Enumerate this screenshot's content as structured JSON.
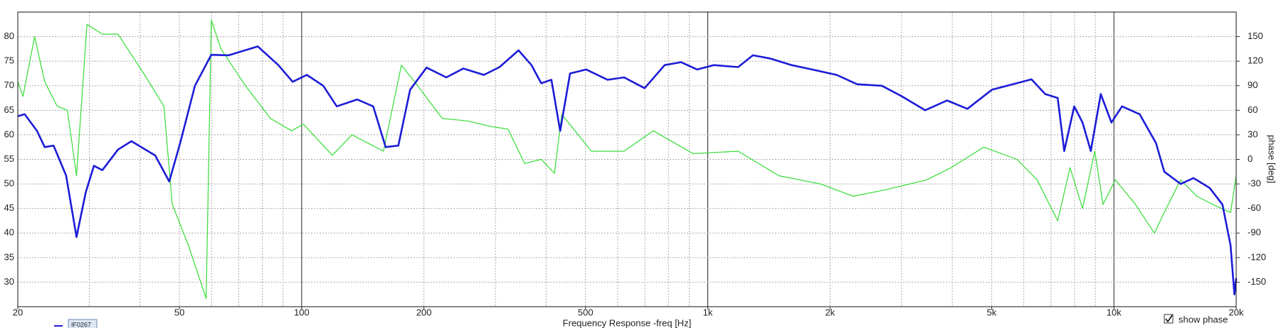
{
  "chart_data": {
    "type": "line",
    "x_label": "Frequency Response -freq [Hz]",
    "y2_label": "phase [deg]",
    "checkbox_label": "show phase",
    "xscale": "log",
    "xlim": [
      20,
      20000
    ],
    "xticks": [
      20,
      50,
      100,
      200,
      500,
      {
        "value": 1000,
        "label": "1k"
      },
      {
        "value": 2000,
        "label": "2k"
      },
      {
        "value": 5000,
        "label": "5k"
      },
      {
        "value": 10000,
        "label": "10k"
      },
      {
        "value": 20000,
        "label": "20k"
      }
    ],
    "ylim": [
      25,
      85
    ],
    "yticks": [
      30,
      35,
      40,
      45,
      50,
      55,
      60,
      65,
      70,
      75,
      80
    ],
    "y2lim": [
      -180,
      180
    ],
    "y2ticks": [
      -150,
      -120,
      -90,
      -60,
      -30,
      0,
      30,
      60,
      90,
      120,
      150
    ],
    "grid": true,
    "series": [
      {
        "name": "IF0267",
        "color": "#1c1cd8",
        "x": [
          20,
          20.8,
          22.3,
          23.3,
          24.5,
          26.3,
          27.9,
          29.4,
          30.8,
          32.3,
          35.3,
          38.1,
          43.6,
          47.2,
          50.2,
          54.6,
          59.9,
          66.1,
          78,
          87.6,
          95,
          103,
          113,
          122,
          137,
          150,
          161,
          173,
          185,
          203,
          227,
          250,
          281,
          307,
          342,
          368,
          389,
          412,
          433,
          458,
          502,
          567,
          622,
          699,
          783,
          859,
          942,
          1034,
          1188,
          1292,
          1432,
          1608,
          1806,
          2076,
          2333,
          2684,
          3012,
          3429,
          3884,
          4356,
          5010,
          5630,
          6266,
          6775,
          7269,
          7545,
          7983,
          8368,
          8771,
          9279,
          9860,
          10470,
          11570,
          12700,
          13300,
          14600,
          15700,
          17200,
          18500,
          19370,
          19800,
          20000
        ],
        "values": [
          63.8,
          64.2,
          60.8,
          57.5,
          57.8,
          51.7,
          39.2,
          48.3,
          53.7,
          52.8,
          57,
          58.7,
          55.8,
          50.5,
          58.3,
          70,
          76.3,
          76.2,
          78,
          74.2,
          70.8,
          72.2,
          70,
          65.8,
          67.2,
          65.8,
          57.5,
          57.8,
          69.2,
          73.7,
          71.7,
          73.5,
          72.2,
          73.8,
          77.2,
          74.2,
          70.5,
          71.2,
          60.8,
          72.5,
          73.3,
          71.2,
          71.7,
          69.5,
          74.2,
          74.8,
          73.3,
          74.2,
          73.8,
          76.2,
          75.5,
          74.2,
          73.3,
          72.2,
          70.3,
          70,
          67.8,
          65,
          67,
          65.3,
          69.2,
          70.3,
          71.3,
          68.3,
          67.5,
          56.7,
          65.8,
          62.5,
          56.7,
          68.3,
          62.5,
          65.8,
          64.2,
          58.3,
          52.5,
          50,
          51.2,
          49.2,
          45.8,
          37.5,
          27.5,
          30.8
        ]
      },
      {
        "color": "#33dd33",
        "axis": "y2",
        "x": [
          20,
          20.6,
          22,
          23.3,
          25,
          26.5,
          27.9,
          29.6,
          32.3,
          35.3,
          40.6,
          45.8,
          48,
          52.6,
          58.2,
          59.9,
          63.3,
          72.7,
          83.8,
          94.4,
          101,
          119,
          133,
          159,
          176,
          193,
          222,
          256,
          294,
          322,
          354,
          389,
          419,
          437,
          517,
          622,
          734,
          920,
          1188,
          1498,
          1894,
          2279,
          2747,
          3460,
          3975,
          4780,
          5770,
          6470,
          7269,
          7800,
          8368,
          8970,
          9400,
          10080,
          11300,
          12580,
          13300,
          14600,
          16000,
          17500,
          19370,
          20000
        ],
        "values": [
          95,
          77,
          150,
          95,
          65,
          60,
          -20,
          165,
          153,
          153,
          107,
          65,
          -55,
          -105,
          -170,
          170,
          135,
          90,
          50,
          35,
          43,
          5,
          30,
          10,
          115,
          90,
          50,
          47,
          40,
          37,
          -5,
          0,
          -17,
          55,
          10,
          10,
          35,
          7,
          10,
          -20,
          -30,
          -45,
          -37,
          -25,
          -10,
          15,
          0,
          -25,
          -75,
          -10,
          -60,
          10,
          -55,
          -25,
          -55,
          -90,
          -65,
          -25,
          -45,
          -55,
          -65,
          -20
        ]
      }
    ]
  }
}
